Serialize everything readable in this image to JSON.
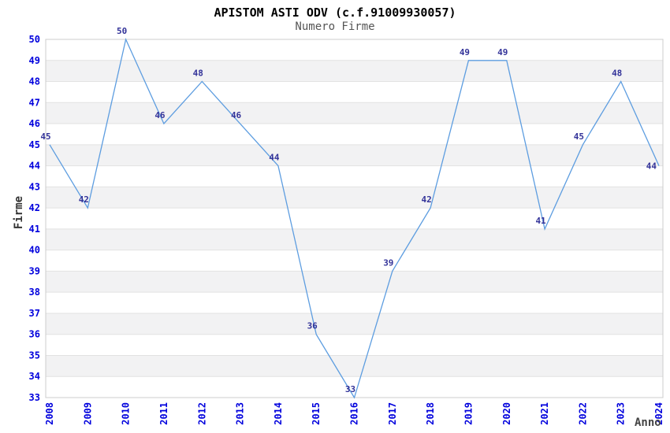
{
  "header": {
    "title": "APISTOM ASTI ODV (c.f.91009930057)",
    "subtitle": "Numero Firme"
  },
  "chart_data": {
    "type": "line",
    "title": "APISTOM ASTI ODV (c.f.91009930057)",
    "subtitle": "Numero Firme",
    "xlabel": "Anno",
    "ylabel": "Firme",
    "categories": [
      "2008",
      "2009",
      "2010",
      "2011",
      "2012",
      "2013",
      "2014",
      "2015",
      "2016",
      "2017",
      "2018",
      "2019",
      "2020",
      "2021",
      "2022",
      "2023",
      "2024"
    ],
    "values": [
      45,
      42,
      50,
      46,
      48,
      46,
      44,
      36,
      33,
      39,
      42,
      49,
      49,
      41,
      45,
      48,
      44
    ],
    "ylim": [
      33,
      50
    ],
    "yticks": [
      33,
      34,
      35,
      36,
      37,
      38,
      39,
      40,
      41,
      42,
      43,
      44,
      45,
      46,
      47,
      48,
      49,
      50
    ],
    "grid": "horizontal",
    "legend": "none",
    "data_labels": true,
    "colors": {
      "line": "#5d9de0",
      "tick_label": "#0000dd",
      "data_label": "#333399",
      "band": "#f2f2f3",
      "gridline": "#e2e2e2",
      "plot_border": "#cccccc",
      "plot_bg": "#ffffff",
      "title": "#000000",
      "subtitle": "#555555",
      "axis_title": "#333333"
    }
  }
}
